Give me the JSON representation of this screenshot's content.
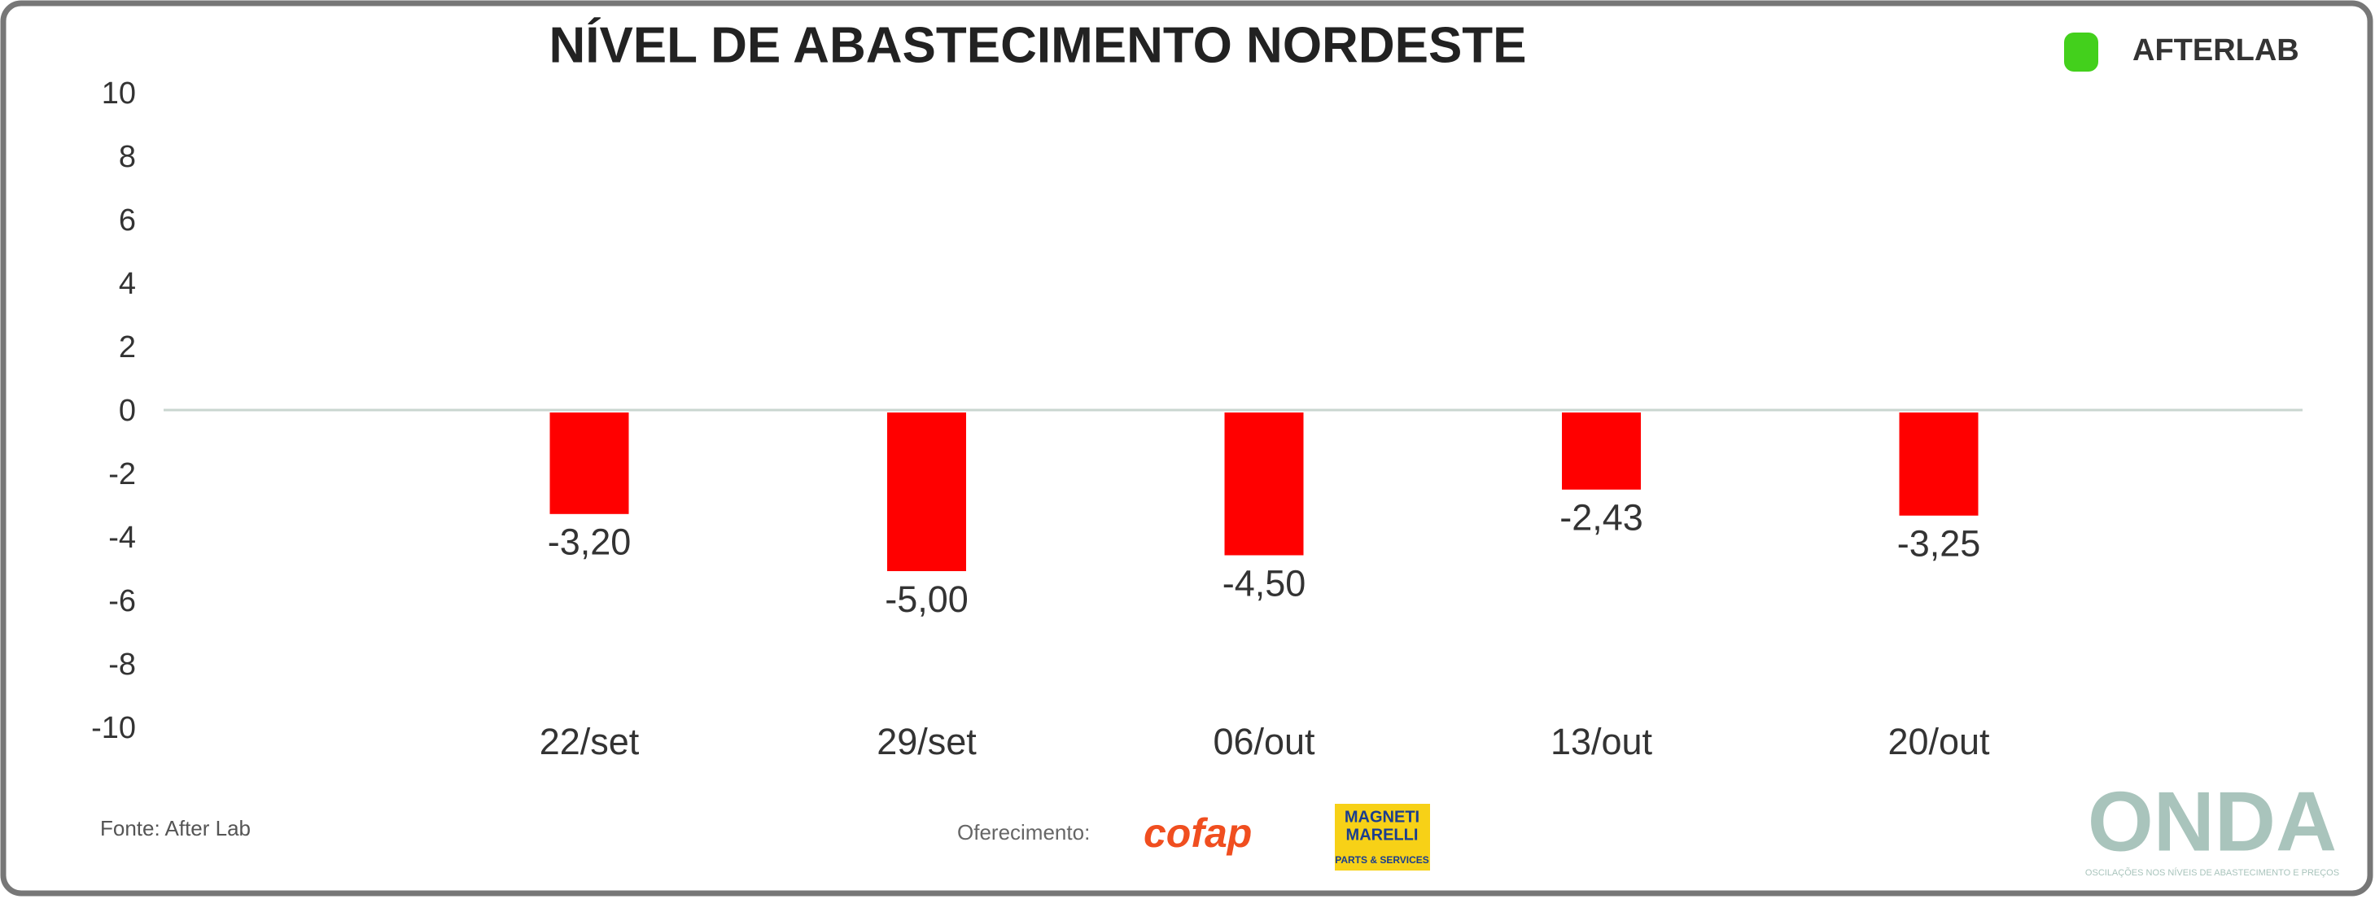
{
  "chart_data": {
    "type": "bar",
    "title": "NÍVEL DE ABASTECIMENTO NORDESTE",
    "categories": [
      "22/set",
      "29/set",
      "06/out",
      "13/out",
      "20/out"
    ],
    "values": [
      -3.2,
      -5.0,
      -4.5,
      -2.43,
      -3.25
    ],
    "value_labels": [
      "-3,20",
      "-5,00",
      "-4,50",
      "-2,43",
      "-3,25"
    ],
    "color": "#ff0000",
    "ylim": [
      -10,
      10
    ],
    "yticks": [
      -10,
      -8,
      -6,
      -4,
      -2,
      0,
      2,
      4,
      6,
      8,
      10
    ],
    "grid": false,
    "source": "Fonte: After Lab",
    "sponsor_label": "Oferecimento:",
    "brand": "AFTERLAB",
    "sponsors": [
      "cofap",
      "MAGNETI",
      "MARELLI",
      "PARTS & SERVICES"
    ],
    "footer_logo": "ONDA",
    "footer_tagline": "OSCILAÇÕES NOS NÍVEIS DE ABASTECIMENTO E PREÇOS"
  }
}
